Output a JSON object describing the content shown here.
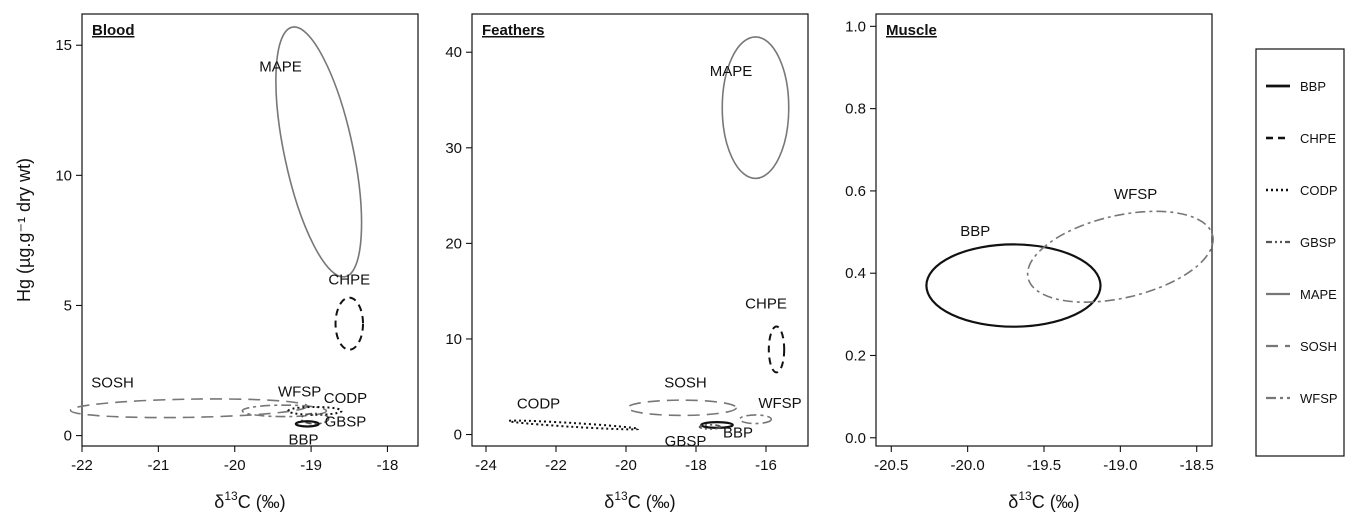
{
  "chart_data": [
    {
      "type": "scatter",
      "title": "Blood",
      "xlabel_html": [
        "δ",
        "13",
        "C (‰)"
      ],
      "ylabel": "Hg (µg.g⁻¹ dry wt)",
      "xlim": [
        -22,
        -17.6
      ],
      "ylim": [
        -0.4,
        16.2
      ],
      "xticks": [
        -22,
        -21,
        -20,
        -19,
        -18
      ],
      "yticks": [
        0,
        5,
        10,
        15
      ],
      "ellipses": [
        {
          "species": "MAPE",
          "cx": -18.9,
          "cy": 10.9,
          "rx": 0.45,
          "ry": 4.9,
          "rot": -12
        },
        {
          "species": "CHPE",
          "cx": -18.5,
          "cy": 4.3,
          "rx": 0.18,
          "ry": 1.0,
          "rot": 0
        },
        {
          "species": "SOSH",
          "cx": -20.6,
          "cy": 1.05,
          "rx": 1.55,
          "ry": 0.35,
          "rot": -1
        },
        {
          "species": "WFSP",
          "cx": -19.35,
          "cy": 0.95,
          "rx": 0.55,
          "ry": 0.22,
          "rot": 0
        },
        {
          "species": "CODP",
          "cx": -18.95,
          "cy": 0.95,
          "rx": 0.35,
          "ry": 0.15,
          "rot": 0
        },
        {
          "species": "GBSP",
          "cx": -18.95,
          "cy": 0.65,
          "rx": 0.18,
          "ry": 0.2,
          "rot": 0
        },
        {
          "species": "BBP",
          "cx": -19.05,
          "cy": 0.45,
          "rx": 0.15,
          "ry": 0.1,
          "rot": 0
        }
      ],
      "labels": [
        {
          "text": "MAPE",
          "x": -19.4,
          "y": 14.0
        },
        {
          "text": "CHPE",
          "x": -18.5,
          "y": 5.8
        },
        {
          "text": "SOSH",
          "x": -21.6,
          "y": 1.85
        },
        {
          "text": "WFSP",
          "x": -19.15,
          "y": 1.5
        },
        {
          "text": "CODP",
          "x": -18.55,
          "y": 1.25
        },
        {
          "text": "GBSP",
          "x": -18.55,
          "y": 0.35
        },
        {
          "text": "BBP",
          "x": -19.1,
          "y": -0.35
        }
      ]
    },
    {
      "type": "scatter",
      "title": "Feathers",
      "xlabel_html": [
        "δ",
        "13",
        "C (‰)"
      ],
      "xlim": [
        -24.4,
        -14.8
      ],
      "ylim": [
        -1.2,
        44
      ],
      "xticks": [
        -24,
        -22,
        -20,
        -18,
        -16
      ],
      "yticks": [
        0,
        10,
        20,
        30,
        40
      ],
      "ellipses": [
        {
          "species": "MAPE",
          "cx": -16.3,
          "cy": 34.2,
          "rx": 0.95,
          "ry": 7.4,
          "rot": 0
        },
        {
          "species": "CHPE",
          "cx": -15.7,
          "cy": 8.9,
          "rx": 0.22,
          "ry": 2.4,
          "rot": 0
        },
        {
          "species": "SOSH",
          "cx": -18.4,
          "cy": 2.8,
          "rx": 1.55,
          "ry": 0.8,
          "rot": 0
        },
        {
          "species": "CODP",
          "cx": -21.5,
          "cy": 1.0,
          "rx": 1.85,
          "ry": 0.2,
          "rot": 3.5
        },
        {
          "species": "WFSP",
          "cx": -16.3,
          "cy": 1.6,
          "rx": 0.45,
          "ry": 0.45,
          "rot": 0
        },
        {
          "species": "BBP",
          "cx": -17.4,
          "cy": 1.0,
          "rx": 0.45,
          "ry": 0.3,
          "rot": 0
        },
        {
          "species": "GBSP",
          "cx": -17.6,
          "cy": 0.8,
          "rx": 0.3,
          "ry": 0.22,
          "rot": 0
        }
      ],
      "labels": [
        {
          "text": "MAPE",
          "x": -17.0,
          "y": 37.5
        },
        {
          "text": "CHPE",
          "x": -16.0,
          "y": 13.2
        },
        {
          "text": "SOSH",
          "x": -18.3,
          "y": 4.9
        },
        {
          "text": "CODP",
          "x": -22.5,
          "y": 2.7
        },
        {
          "text": "WFSP",
          "x": -15.6,
          "y": 2.8
        },
        {
          "text": "BBP",
          "x": -16.8,
          "y": -0.3
        },
        {
          "text": "GBSP",
          "x": -18.3,
          "y": -1.2
        }
      ]
    },
    {
      "type": "scatter",
      "title": "Muscle",
      "xlabel_html": [
        "δ",
        "13",
        "C (‰)"
      ],
      "xlim": [
        -20.6,
        -18.4
      ],
      "ylim": [
        -0.02,
        1.03
      ],
      "xticks": [
        -20.5,
        -20.0,
        -19.5,
        -19.0,
        -18.5
      ],
      "xtick_labels": [
        "-20.5",
        "-20.0",
        "-19.5",
        "-19.0",
        "-18.5"
      ],
      "yticks": [
        0.0,
        0.2,
        0.4,
        0.6,
        0.8,
        1.0
      ],
      "ytick_labels": [
        "0.0",
        "0.2",
        "0.4",
        "0.6",
        "0.8",
        "1.0"
      ],
      "ellipses": [
        {
          "species": "BBP",
          "cx": -19.7,
          "cy": 0.37,
          "rx": 0.57,
          "ry": 0.1,
          "rot": 0
        },
        {
          "species": "WFSP",
          "cx": -19.0,
          "cy": 0.44,
          "rx": 0.62,
          "ry": 0.1,
          "rot": -13
        }
      ],
      "labels": [
        {
          "text": "BBP",
          "x": -19.95,
          "y": 0.49
        },
        {
          "text": "WFSP",
          "x": -18.9,
          "y": 0.58
        }
      ]
    }
  ],
  "legend": [
    {
      "species": "BBP"
    },
    {
      "species": "CHPE"
    },
    {
      "species": "CODP"
    },
    {
      "species": "GBSP"
    },
    {
      "species": "MAPE"
    },
    {
      "species": "SOSH"
    },
    {
      "species": "WFSP"
    }
  ],
  "styles": {
    "BBP": {
      "color": "#111111",
      "dash": "",
      "width": 2.2
    },
    "CHPE": {
      "color": "#111111",
      "dash": "7,5",
      "width": 2
    },
    "CODP": {
      "color": "#111111",
      "dash": "2,3",
      "width": 2
    },
    "GBSP": {
      "color": "#555555",
      "dash": "6,3,2,3,2,3",
      "width": 1.6
    },
    "MAPE": {
      "color": "#777777",
      "dash": "",
      "width": 1.6
    },
    "SOSH": {
      "color": "#777777",
      "dash": "12,7",
      "width": 1.6
    },
    "WFSP": {
      "color": "#777777",
      "dash": "10,4,3,4",
      "width": 1.6
    }
  }
}
